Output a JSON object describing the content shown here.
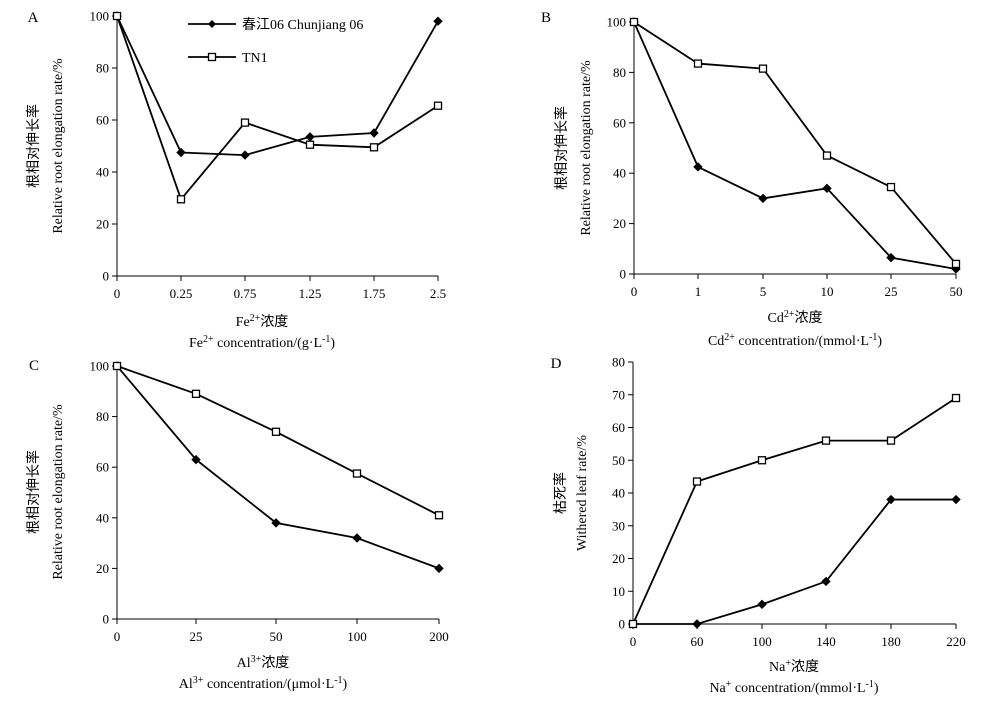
{
  "legend": {
    "entries": [
      {
        "label": "春江06 Chunjiang 06",
        "marker": "diamond"
      },
      {
        "label": "TN1",
        "marker": "square"
      }
    ]
  },
  "chart_data": [
    {
      "type": "line",
      "panel": "A",
      "categories": [
        "0",
        "0.25",
        "0.75",
        "1.25",
        "1.75",
        "2.5"
      ],
      "xlabel_cn": "Fe2+浓度",
      "xlabel_en": "Fe2+ concentration/(g·L-1)",
      "xlabel_cn_parts": {
        "base": "Fe",
        "sup": "2+",
        "rest": "浓度"
      },
      "xlabel_en_parts": {
        "base": "Fe",
        "sup": "2+",
        "mid": " concentration/(g·L",
        "sup2": "-1",
        "end": ")"
      },
      "ylabel_cn": "根相对伸长率",
      "ylabel_en": "Relative root elongation rate/%",
      "ylim": [
        0,
        100
      ],
      "yticks": [
        0,
        20,
        40,
        60,
        80,
        100
      ],
      "series": [
        {
          "name": "春江06 Chunjiang 06",
          "marker": "diamond",
          "values": [
            100,
            47.5,
            46.5,
            53.5,
            55,
            98
          ]
        },
        {
          "name": "TN1",
          "marker": "square",
          "values": [
            100,
            29.5,
            59,
            50.5,
            49.5,
            65.5
          ]
        }
      ]
    },
    {
      "type": "line",
      "panel": "B",
      "categories": [
        "0",
        "1",
        "5",
        "10",
        "25",
        "50"
      ],
      "xlabel_cn": "Cd2+浓度",
      "xlabel_en": "Cd2+ concentration/(mmol·L-1)",
      "xlabel_cn_parts": {
        "base": "Cd",
        "sup": "2+",
        "rest": "浓度"
      },
      "xlabel_en_parts": {
        "base": "Cd",
        "sup": "2+",
        "mid": " concentration/(mmol·L",
        "sup2": "-1",
        "end": ")"
      },
      "ylabel_cn": "根相对伸长率",
      "ylabel_en": "Relative root elongation rate/%",
      "ylim": [
        0,
        100
      ],
      "yticks": [
        0,
        20,
        40,
        60,
        80,
        100
      ],
      "series": [
        {
          "name": "春江06 Chunjiang 06",
          "marker": "diamond",
          "values": [
            100,
            42.5,
            30,
            34,
            6.5,
            2
          ]
        },
        {
          "name": "TN1",
          "marker": "square",
          "values": [
            100,
            83.5,
            81.5,
            47,
            34.5,
            4
          ]
        }
      ]
    },
    {
      "type": "line",
      "panel": "C",
      "categories": [
        "0",
        "25",
        "50",
        "100",
        "200"
      ],
      "xlabel_cn": "Al3+浓度",
      "xlabel_en": "Al3+ concentration/(μmol·L-1)",
      "xlabel_cn_parts": {
        "base": "Al",
        "sup": "3+",
        "rest": "浓度"
      },
      "xlabel_en_parts": {
        "base": "Al",
        "sup": "3+",
        "mid": " concentration/(μmol·L",
        "sup2": "-1",
        "end": ")"
      },
      "ylabel_cn": "根相对伸长率",
      "ylabel_en": "Relative root elongation rate/%",
      "ylim": [
        0,
        100
      ],
      "yticks": [
        0,
        20,
        40,
        60,
        80,
        100
      ],
      "series": [
        {
          "name": "春江06 Chunjiang 06",
          "marker": "diamond",
          "values": [
            100,
            63,
            38,
            32,
            20
          ]
        },
        {
          "name": "TN1",
          "marker": "square",
          "values": [
            100,
            89,
            74,
            57.5,
            41
          ]
        }
      ]
    },
    {
      "type": "line",
      "panel": "D",
      "categories": [
        "0",
        "60",
        "100",
        "140",
        "180",
        "220"
      ],
      "xlabel_cn": "Na+浓度",
      "xlabel_en": "Na+ concentration/(mmol·L-1)",
      "xlabel_cn_parts": {
        "base": "Na",
        "sup": "+",
        "rest": "浓度"
      },
      "xlabel_en_parts": {
        "base": "Na",
        "sup": "+",
        "mid": " concentration/(mmol·L",
        "sup2": "-1",
        "end": ")"
      },
      "ylabel_cn": "枯死率",
      "ylabel_en": "Withered leaf rate/%",
      "ylim": [
        0,
        80
      ],
      "yticks": [
        0,
        10,
        20,
        30,
        40,
        50,
        60,
        70,
        80
      ],
      "series": [
        {
          "name": "春江06 Chunjiang 06",
          "marker": "diamond",
          "values": [
            0,
            0,
            6,
            13,
            38,
            38
          ]
        },
        {
          "name": "TN1",
          "marker": "square",
          "values": [
            0,
            43.5,
            50,
            56,
            56,
            69
          ]
        }
      ]
    }
  ]
}
